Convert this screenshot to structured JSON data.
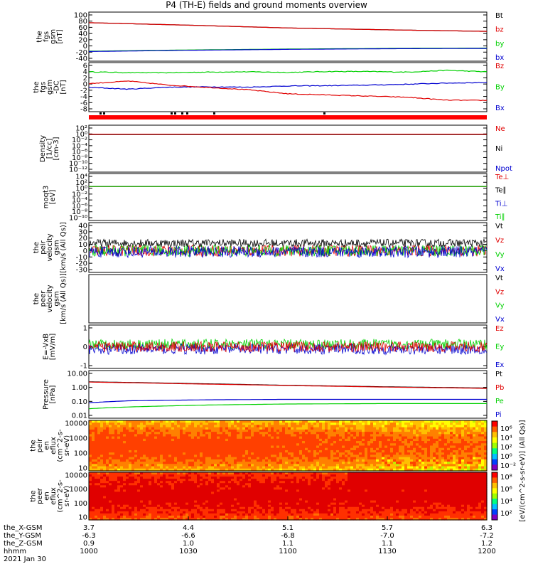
{
  "title": "P4 (TH-E) fields and ground moments overview",
  "colors": {
    "black": "#000000",
    "red": "#e00000",
    "green": "#00d000",
    "blue": "#0000d0"
  },
  "chart_data": [
    {
      "type": "line",
      "ylabel": [
        "the",
        "fgs",
        "gsm",
        "[nT]"
      ],
      "yticks": [
        "100",
        "80",
        "60",
        "40",
        "20",
        "0",
        "-20",
        "-40"
      ],
      "ylim": [
        -40,
        100
      ],
      "legend": [
        {
          "name": "Bt",
          "color": "#000000"
        },
        {
          "name": "bz",
          "color": "#e00000"
        },
        {
          "name": "by",
          "color": "#00d000"
        },
        {
          "name": "bx",
          "color": "#0000d0"
        }
      ],
      "series": [
        {
          "name": "Bt",
          "color": "#000000",
          "x": [
            0,
            0.25,
            0.5,
            0.75,
            1
          ],
          "values": [
            75,
            67,
            58,
            52,
            47
          ]
        },
        {
          "name": "bz",
          "color": "#e00000",
          "x": [
            0,
            0.25,
            0.5,
            0.75,
            1
          ],
          "values": [
            75,
            67,
            58,
            52,
            47
          ]
        },
        {
          "name": "by",
          "color": "#00d000",
          "x": [
            0,
            0.25,
            0.5,
            0.75,
            1
          ],
          "values": [
            -17,
            -13,
            -10,
            -8,
            -7
          ]
        },
        {
          "name": "bx",
          "color": "#0000d0",
          "x": [
            0,
            0.25,
            0.5,
            0.75,
            1
          ],
          "values": [
            -18,
            -14,
            -11,
            -9,
            -8
          ]
        }
      ]
    },
    {
      "type": "line",
      "ylabel": [
        "the",
        "fgs",
        "gsm",
        "-DC",
        "[nT]"
      ],
      "yticks": [
        "6",
        "4",
        "2",
        "0",
        "-2",
        "-4",
        "-6",
        "-8"
      ],
      "ylim": [
        -9,
        6
      ],
      "legend": [
        {
          "name": "Bz",
          "color": "#e00000"
        },
        {
          "name": "By",
          "color": "#00d000"
        },
        {
          "name": "Bx",
          "color": "#0000d0"
        }
      ],
      "series": [
        {
          "name": "By",
          "color": "#00d000",
          "x": [
            0,
            0.1,
            0.2,
            0.3,
            0.4,
            0.5,
            0.6,
            0.7,
            0.8,
            0.9,
            1
          ],
          "values": [
            3.8,
            3.5,
            3.5,
            3.7,
            3.8,
            3.6,
            3.9,
            3.9,
            3.7,
            4.3,
            3.8
          ]
        },
        {
          "name": "Bx",
          "color": "#0000d0",
          "x": [
            0,
            0.1,
            0.2,
            0.3,
            0.4,
            0.5,
            0.6,
            0.7,
            0.8,
            0.9,
            1
          ],
          "values": [
            -1.6,
            -2.2,
            -1.5,
            -1.4,
            -1.5,
            -1.1,
            -1.0,
            -0.8,
            -0.5,
            -0.1,
            0.1
          ]
        },
        {
          "name": "Bz",
          "color": "#e00000",
          "x": [
            0,
            0.1,
            0.2,
            0.3,
            0.4,
            0.5,
            0.6,
            0.7,
            0.8,
            0.9,
            1
          ],
          "values": [
            -0.3,
            0.6,
            -0.8,
            -1.6,
            -2.4,
            -3.8,
            -4.2,
            -4.6,
            -5.0,
            -6.0,
            -6.1
          ]
        }
      ]
    },
    {
      "type": "line",
      "ylabel": [
        "Density",
        "[1/cc]",
        "[cm-3]"
      ],
      "yticks": [
        "10²",
        "10⁰",
        "10⁻²",
        "10⁻⁴",
        "10⁻⁶",
        "10⁻⁸",
        "10⁻¹⁰",
        "10⁻¹²"
      ],
      "ylim": [
        -12,
        2
      ],
      "log": true,
      "legend": [
        {
          "name": "Ne",
          "color": "#e00000"
        },
        {
          "name": "Ni",
          "color": "#000000"
        },
        {
          "name": "Npot",
          "color": "#0000d0"
        }
      ],
      "series": [
        {
          "name": "Ni",
          "color": "#000000",
          "x": [
            0,
            0.5,
            1
          ],
          "values": [
            0.6,
            0.6,
            0.6
          ]
        },
        {
          "name": "Ne",
          "color": "#e00000",
          "x": [
            0,
            0.5,
            1
          ],
          "values": [
            0.8,
            0.8,
            0.8
          ]
        }
      ]
    },
    {
      "type": "line",
      "ylabel": [
        "moqt3",
        "[eV]"
      ],
      "yticks": [
        "10⁴",
        "10²",
        "10⁰",
        "10⁻²",
        "10⁻⁴",
        "10⁻⁶",
        "10⁻⁸",
        "10⁻¹⁰"
      ],
      "ylim": [
        -10,
        4
      ],
      "log": true,
      "legend": [
        {
          "name": "Te⊥",
          "color": "#e00000"
        },
        {
          "name": "Te∥",
          "color": "#000000"
        },
        {
          "name": "Ti⊥",
          "color": "#0000d0"
        },
        {
          "name": "Ti∥",
          "color": "#00d000"
        }
      ],
      "series": [
        {
          "name": "Ti⊥",
          "color": "#0000d0",
          "x": [
            0,
            0.5,
            1
          ],
          "values": [
            3.9,
            3.9,
            3.9
          ]
        },
        {
          "name": "Te⊥",
          "color": "#e00000",
          "x": [
            0,
            0.5,
            1
          ],
          "values": [
            3.6,
            3.6,
            3.6
          ]
        },
        {
          "name": "Ti∥",
          "color": "#00d000",
          "x": [
            0,
            0.5,
            1
          ],
          "values": [
            3.8,
            3.8,
            3.8
          ]
        }
      ]
    },
    {
      "type": "line",
      "ylabel": [
        "the",
        "peir",
        "velocity",
        "gsm",
        "[km/s (All Qs)]"
      ],
      "yticks": [
        "40",
        "30",
        "20",
        "10",
        "0",
        "-10",
        "-20",
        "-30"
      ],
      "ylim": [
        -30,
        40
      ],
      "legend": [
        {
          "name": "Vt",
          "color": "#000000"
        },
        {
          "name": "Vz",
          "color": "#e00000"
        },
        {
          "name": "Vy",
          "color": "#00d000"
        },
        {
          "name": "Vx",
          "color": "#0000d0"
        }
      ],
      "series": [
        {
          "name": "Vt",
          "color": "#000000",
          "x": [
            0,
            1
          ],
          "values": [
            12,
            12
          ]
        },
        {
          "name": "Vz",
          "color": "#e00000",
          "x": [
            0,
            1
          ],
          "values": [
            0,
            0
          ]
        },
        {
          "name": "Vy",
          "color": "#00d000",
          "x": [
            0,
            1
          ],
          "values": [
            0,
            0
          ]
        },
        {
          "name": "Vx",
          "color": "#0000d0",
          "x": [
            0,
            1
          ],
          "values": [
            -2,
            -2
          ]
        }
      ]
    },
    {
      "type": "line",
      "ylabel": [
        "the",
        "peer",
        "velocity",
        "gsm",
        "[km/s (All Qs)]"
      ],
      "yticks": [],
      "legend": [
        {
          "name": "Vt",
          "color": "#000000"
        },
        {
          "name": "Vz",
          "color": "#e00000"
        },
        {
          "name": "Vy",
          "color": "#00d000"
        },
        {
          "name": "Vx",
          "color": "#0000d0"
        }
      ],
      "series": []
    },
    {
      "type": "line",
      "ylabel": [
        "E=-VxB",
        "[mV/m]"
      ],
      "yticks": [
        "1",
        "0",
        "-1"
      ],
      "ylim": [
        -1.6,
        1.6
      ],
      "legend": [
        {
          "name": "Ez",
          "color": "#e00000"
        },
        {
          "name": "Ey",
          "color": "#00d000"
        },
        {
          "name": "Ex",
          "color": "#0000d0"
        }
      ],
      "series": [
        {
          "name": "Ey",
          "color": "#00d000",
          "x": [
            0,
            1
          ],
          "values": [
            0.2,
            0.2
          ]
        },
        {
          "name": "Ex",
          "color": "#0000d0",
          "x": [
            0,
            1
          ],
          "values": [
            -0.2,
            -0.2
          ]
        },
        {
          "name": "Ez",
          "color": "#e00000",
          "x": [
            0,
            1
          ],
          "values": [
            0,
            0
          ]
        }
      ]
    },
    {
      "type": "line",
      "ylabel": [
        "Pressure",
        "[nPa]"
      ],
      "yticks": [
        "10.00",
        "1.00",
        "0.10",
        "0.01"
      ],
      "ylim": [
        -2,
        1
      ],
      "log": true,
      "legend": [
        {
          "name": "Pt",
          "color": "#000000"
        },
        {
          "name": "Pb",
          "color": "#e00000"
        },
        {
          "name": "Pe",
          "color": "#00d000"
        },
        {
          "name": "Pi",
          "color": "#0000d0"
        }
      ],
      "series": [
        {
          "name": "Pt",
          "color": "#000000",
          "x": [
            0,
            0.25,
            0.5,
            0.75,
            1
          ],
          "values": [
            2.5,
            1.9,
            1.4,
            1.1,
            0.9
          ]
        },
        {
          "name": "Pb",
          "color": "#e00000",
          "x": [
            0,
            0.25,
            0.5,
            0.75,
            1
          ],
          "values": [
            2.4,
            1.8,
            1.35,
            1.05,
            0.85
          ]
        },
        {
          "name": "Pi",
          "color": "#0000d0",
          "x": [
            0,
            0.1,
            0.3,
            0.5,
            0.75,
            1
          ],
          "values": [
            0.08,
            0.11,
            0.13,
            0.14,
            0.14,
            0.14
          ]
        },
        {
          "name": "Pe",
          "color": "#00d000",
          "x": [
            0,
            0.1,
            0.3,
            0.5,
            0.75,
            1
          ],
          "values": [
            0.03,
            0.04,
            0.055,
            0.065,
            0.07,
            0.07
          ]
        }
      ]
    },
    {
      "type": "heatmap",
      "ylabel": [
        "the",
        "peir",
        "en",
        "eflux",
        "(cm^2-s-",
        "sr-eV)"
      ],
      "yticks": [
        "10000",
        "1000",
        "100",
        "10"
      ],
      "ylim": [
        1,
        4
      ]
    },
    {
      "type": "heatmap",
      "ylabel": [
        "the",
        "peer",
        "en",
        "eflux",
        "(cm^2-s-",
        "sr-eV)"
      ],
      "yticks": [
        "10000",
        "1000",
        "100",
        "10"
      ],
      "ylim": [
        1,
        4
      ]
    }
  ],
  "colorbar": {
    "label": "[eV/(cm^2-s-sr-eV)] (All Qs)]",
    "ticks_top": [
      "10⁶",
      "10⁴",
      "10²",
      "10⁰",
      "10⁻²"
    ],
    "ticks_bottom": [
      "10⁸",
      "10⁶",
      "10⁴",
      "10²"
    ]
  },
  "bottom_axis": {
    "rows": [
      {
        "label": "the_X-GSM",
        "values": [
          "3.7",
          "4.4",
          "5.1",
          "5.7",
          "6.3"
        ]
      },
      {
        "label": "the_Y-GSM",
        "values": [
          "-6.3",
          "-6.6",
          "-6.8",
          "-7.0",
          "-7.2"
        ]
      },
      {
        "label": "the_Z-GSM",
        "values": [
          "0.9",
          "1.0",
          "1.1",
          "1.1",
          "1.2"
        ]
      },
      {
        "label": "hhmm",
        "values": [
          "1000",
          "1030",
          "1100",
          "1130",
          "1200"
        ]
      }
    ],
    "date": "2021 Jan 30"
  }
}
